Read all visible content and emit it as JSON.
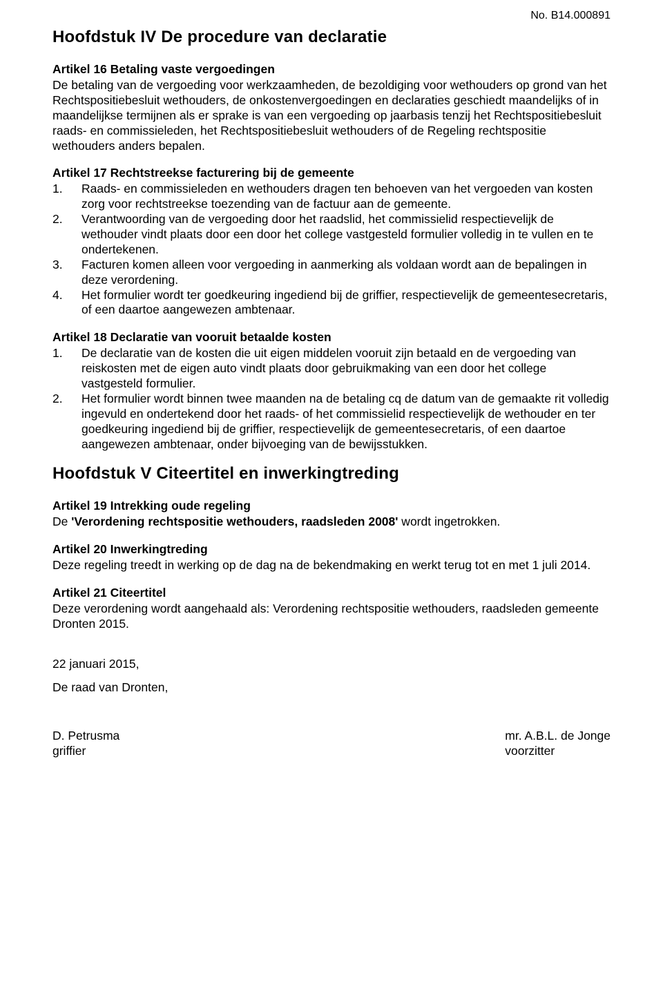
{
  "doc_number": "No. B14.000891",
  "chapters": {
    "iv": "Hoofdstuk IV De procedure van declaratie",
    "v": "Hoofdstuk V  Citeertitel en inwerkingtreding"
  },
  "art16": {
    "heading": "Artikel 16 Betaling vaste vergoedingen",
    "body": "De betaling van de vergoeding voor werkzaamheden, de bezoldiging voor wethouders op grond van het Rechtspositiebesluit wethouders, de onkostenvergoedingen en declaraties geschiedt maandelijks of in maandelijkse termijnen als er sprake is van een vergoeding op jaarbasis tenzij het Rechtspositiebesluit raads- en commissieleden, het Rechtspositiebesluit wethouders of de Regeling rechtspositie wethouders anders bepalen."
  },
  "art17": {
    "heading": "Artikel 17 Rechtstreekse facturering bij de gemeente",
    "items": [
      "Raads- en commissieleden en wethouders dragen ten behoeven van het vergoeden van kosten zorg voor rechtstreekse toezending van de factuur aan de gemeente.",
      "Verantwoording van de vergoeding door het raadslid, het commissielid respectievelijk de wethouder vindt plaats door een door het college vastgesteld formulier volledig in te vullen en te ondertekenen.",
      "Facturen komen alleen voor vergoeding in aanmerking als voldaan wordt aan de bepalingen in deze verordening.",
      "Het formulier wordt ter goedkeuring ingediend bij de griffier, respectievelijk de gemeentesecretaris, of een daartoe aangewezen ambtenaar."
    ]
  },
  "art18": {
    "heading": "Artikel 18 Declaratie van vooruit betaalde kosten",
    "items": [
      "De declaratie van de kosten die uit eigen middelen vooruit zijn betaald en de vergoeding van reiskosten met de eigen auto vindt plaats door gebruikmaking van een door het college vastgesteld formulier.",
      "Het formulier wordt binnen twee maanden na de betaling cq de datum van de gemaakte rit volledig ingevuld en ondertekend door het raads- of het commissielid respectievelijk de wethouder en ter goedkeuring ingediend bij de griffier, respectievelijk de gemeentesecretaris, of een daartoe aangewezen ambtenaar, onder bijvoeging van de bewijsstukken."
    ]
  },
  "art19": {
    "heading": "Artikel 19 Intrekking oude regeling",
    "body_pre": "De ",
    "body_bold": "'Verordening rechtspositie wethouders, raadsleden 2008'",
    "body_post": " wordt ingetrokken."
  },
  "art20": {
    "heading": "Artikel 20 Inwerkingtreding",
    "body": "Deze regeling treedt in werking op de dag na de bekendmaking en werkt terug tot en met 1 juli 2014."
  },
  "art21": {
    "heading": "Artikel 21 Citeertitel",
    "body": "Deze verordening wordt aangehaald als: Verordening rechtspositie wethouders, raadsleden gemeente Dronten 2015."
  },
  "date_line": "22 januari 2015,",
  "council_line": "De raad van Dronten,",
  "sig": {
    "left_name": "D. Petrusma",
    "left_role": "griffier",
    "right_name": "mr. A.B.L. de Jonge",
    "right_role": "voorzitter"
  },
  "nums": {
    "n1": "1.",
    "n2": "2.",
    "n3": "3.",
    "n4": "4."
  }
}
